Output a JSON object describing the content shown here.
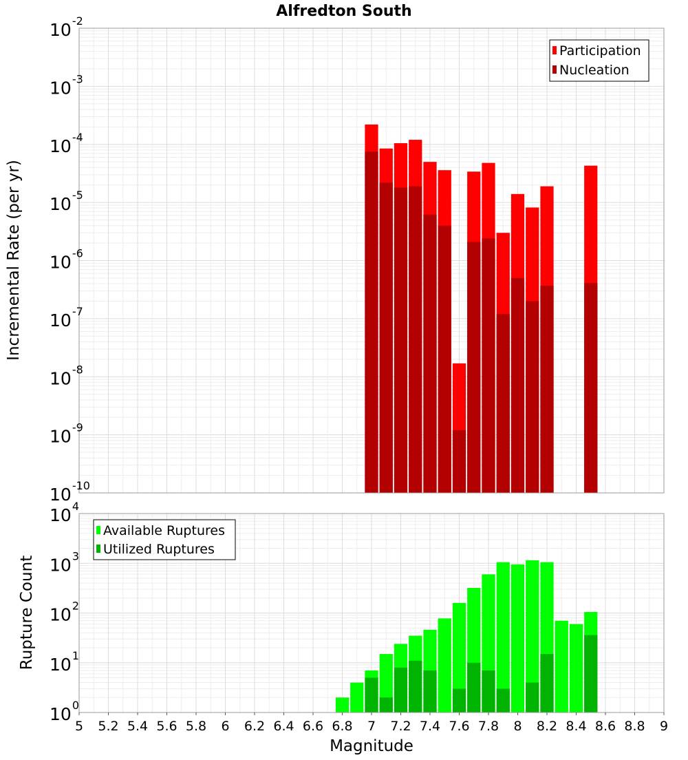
{
  "chart_data": [
    {
      "type": "bar",
      "title": "Alfredton South",
      "xlabel": "",
      "ylabel": "Incremental Rate (per yr)",
      "y_scale": "log",
      "ylim": [
        1e-10,
        0.01
      ],
      "xlim": [
        5,
        9
      ],
      "grid": true,
      "legend_position": "top-right",
      "x": [
        7.0,
        7.1,
        7.2,
        7.3,
        7.4,
        7.5,
        7.6,
        7.7,
        7.8,
        7.9,
        8.0,
        8.1,
        8.2,
        8.5
      ],
      "series": [
        {
          "name": "Participation",
          "color": "#ff0000",
          "values": [
            0.00022,
            8.5e-05,
            0.000105,
            0.00012,
            5e-05,
            3.6e-05,
            1.7e-08,
            3.4e-05,
            4.8e-05,
            3e-06,
            1.4e-05,
            8.2e-06,
            1.9e-05,
            4.3e-05
          ]
        },
        {
          "name": "Nucleation",
          "color": "#b30000",
          "values": [
            7.5e-05,
            2.2e-05,
            1.8e-05,
            1.9e-05,
            6.2e-06,
            4e-06,
            1.2e-09,
            2.1e-06,
            2.4e-06,
            1.2e-07,
            5e-07,
            2e-07,
            3.7e-07,
            4.1e-07
          ]
        }
      ],
      "y_tick_labels": [
        {
          "base": "10",
          "exp": "-10"
        },
        {
          "base": "10",
          "exp": "-9"
        },
        {
          "base": "10",
          "exp": "-8"
        },
        {
          "base": "10",
          "exp": "-7"
        },
        {
          "base": "10",
          "exp": "-6"
        },
        {
          "base": "10",
          "exp": "-5"
        },
        {
          "base": "10",
          "exp": "-4"
        },
        {
          "base": "10",
          "exp": "-3"
        },
        {
          "base": "10",
          "exp": "-2"
        }
      ]
    },
    {
      "type": "bar",
      "title": "",
      "xlabel": "Magnitude",
      "ylabel": "Rupture Count",
      "y_scale": "log",
      "ylim": [
        1,
        10000
      ],
      "xlim": [
        5,
        9
      ],
      "grid": true,
      "legend_position": "top-left",
      "x": [
        6.5,
        6.7,
        6.8,
        6.9,
        7.0,
        7.1,
        7.2,
        7.3,
        7.4,
        7.5,
        7.6,
        7.7,
        7.8,
        7.9,
        8.0,
        8.1,
        8.2,
        8.3,
        8.4,
        8.5
      ],
      "series": [
        {
          "name": "Available Ruptures",
          "color": "#00ff00",
          "values": [
            1,
            1,
            2,
            4,
            7,
            15,
            24,
            35,
            46,
            78,
            160,
            320,
            600,
            1050,
            950,
            1150,
            1050,
            70,
            60,
            105
          ]
        },
        {
          "name": "Utilized Ruptures",
          "color": "#00b300",
          "values": [
            0,
            0,
            0,
            0,
            5,
            2,
            8,
            11,
            7,
            1,
            3,
            10,
            7,
            3,
            1,
            4,
            15,
            0,
            0,
            36
          ]
        }
      ],
      "y_tick_labels": [
        {
          "base": "10",
          "exp": "0"
        },
        {
          "base": "10",
          "exp": "1"
        },
        {
          "base": "10",
          "exp": "2"
        },
        {
          "base": "10",
          "exp": "3"
        },
        {
          "base": "10",
          "exp": "4"
        }
      ],
      "x_tick_labels": [
        "5",
        "5.2",
        "5.4",
        "5.6",
        "5.8",
        "6",
        "6.2",
        "6.4",
        "6.6",
        "6.8",
        "7",
        "7.2",
        "7.4",
        "7.6",
        "7.8",
        "8",
        "8.2",
        "8.4",
        "8.6",
        "8.8",
        "9"
      ]
    }
  ]
}
